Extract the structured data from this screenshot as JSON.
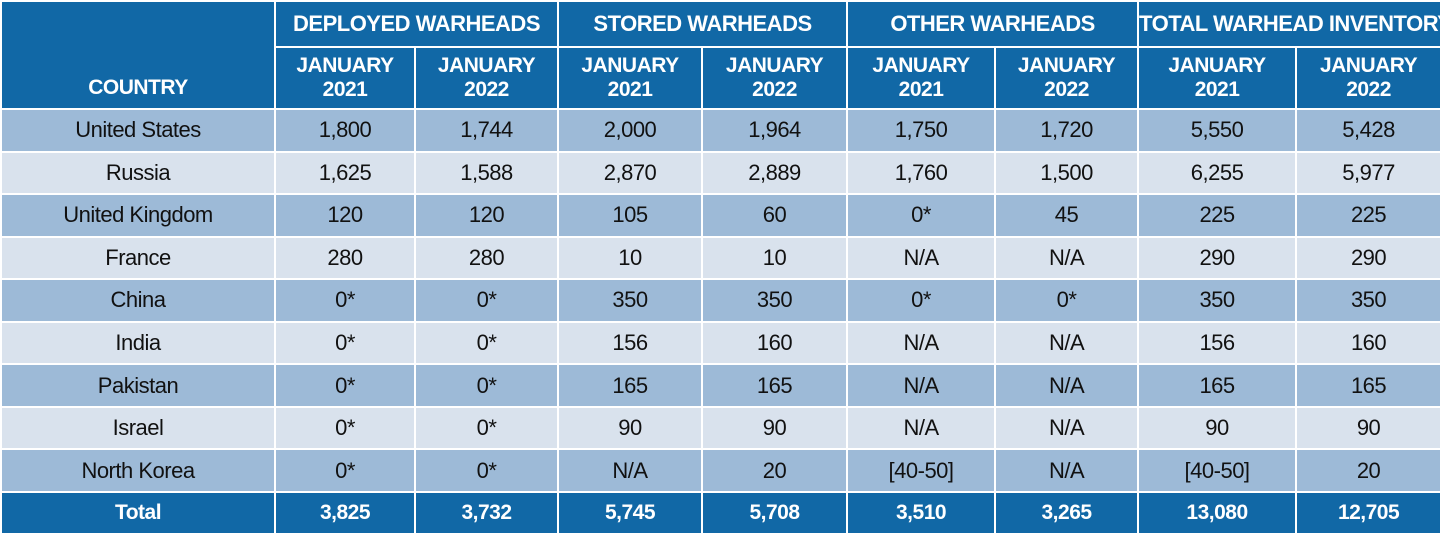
{
  "chart_data": {
    "type": "table",
    "header": {
      "country_label": "COUNTRY",
      "groups": [
        "DEPLOYED WARHEADS",
        "STORED WARHEADS",
        "OTHER WARHEADS",
        "TOTAL WARHEAD INVENTORY"
      ],
      "subcolumns": [
        [
          "JANUARY",
          "2021"
        ],
        [
          "JANUARY",
          "2022"
        ],
        [
          "JANUARY",
          "2021"
        ],
        [
          "JANUARY",
          "2022"
        ],
        [
          "JANUARY",
          "2021"
        ],
        [
          "JANUARY",
          "2022"
        ],
        [
          "JANUARY",
          "2021"
        ],
        [
          "JANUARY",
          "2022"
        ]
      ]
    },
    "rows": [
      {
        "country": "United States",
        "values": [
          "1,800",
          "1,744",
          "2,000",
          "1,964",
          "1,750",
          "1,720",
          "5,550",
          "5,428"
        ]
      },
      {
        "country": "Russia",
        "values": [
          "1,625",
          "1,588",
          "2,870",
          "2,889",
          "1,760",
          "1,500",
          "6,255",
          "5,977"
        ]
      },
      {
        "country": "United Kingdom",
        "values": [
          "120",
          "120",
          "105",
          "60",
          "0*",
          "45",
          "225",
          "225"
        ]
      },
      {
        "country": "France",
        "values": [
          "280",
          "280",
          "10",
          "10",
          "N/A",
          "N/A",
          "290",
          "290"
        ]
      },
      {
        "country": "China",
        "values": [
          "0*",
          "0*",
          "350",
          "350",
          "0*",
          "0*",
          "350",
          "350"
        ]
      },
      {
        "country": "India",
        "values": [
          "0*",
          "0*",
          "156",
          "160",
          "N/A",
          "N/A",
          "156",
          "160"
        ]
      },
      {
        "country": "Pakistan",
        "values": [
          "0*",
          "0*",
          "165",
          "165",
          "N/A",
          "N/A",
          "165",
          "165"
        ]
      },
      {
        "country": "Israel",
        "values": [
          "0*",
          "0*",
          "90",
          "90",
          "N/A",
          "N/A",
          "90",
          "90"
        ]
      },
      {
        "country": "North Korea",
        "values": [
          "0*",
          "0*",
          "N/A",
          "20",
          "[40-50]",
          "N/A",
          "[40-50]",
          "20"
        ]
      }
    ],
    "total": {
      "label": "Total",
      "values": [
        "3,825",
        "3,732",
        "5,745",
        "5,708",
        "3,510",
        "3,265",
        "13,080",
        "12,705"
      ]
    }
  },
  "colors": {
    "header_blue": "#1168a6",
    "row_dark": "#9dbad7",
    "row_light": "#d9e2ed",
    "border": "#ffffff"
  }
}
